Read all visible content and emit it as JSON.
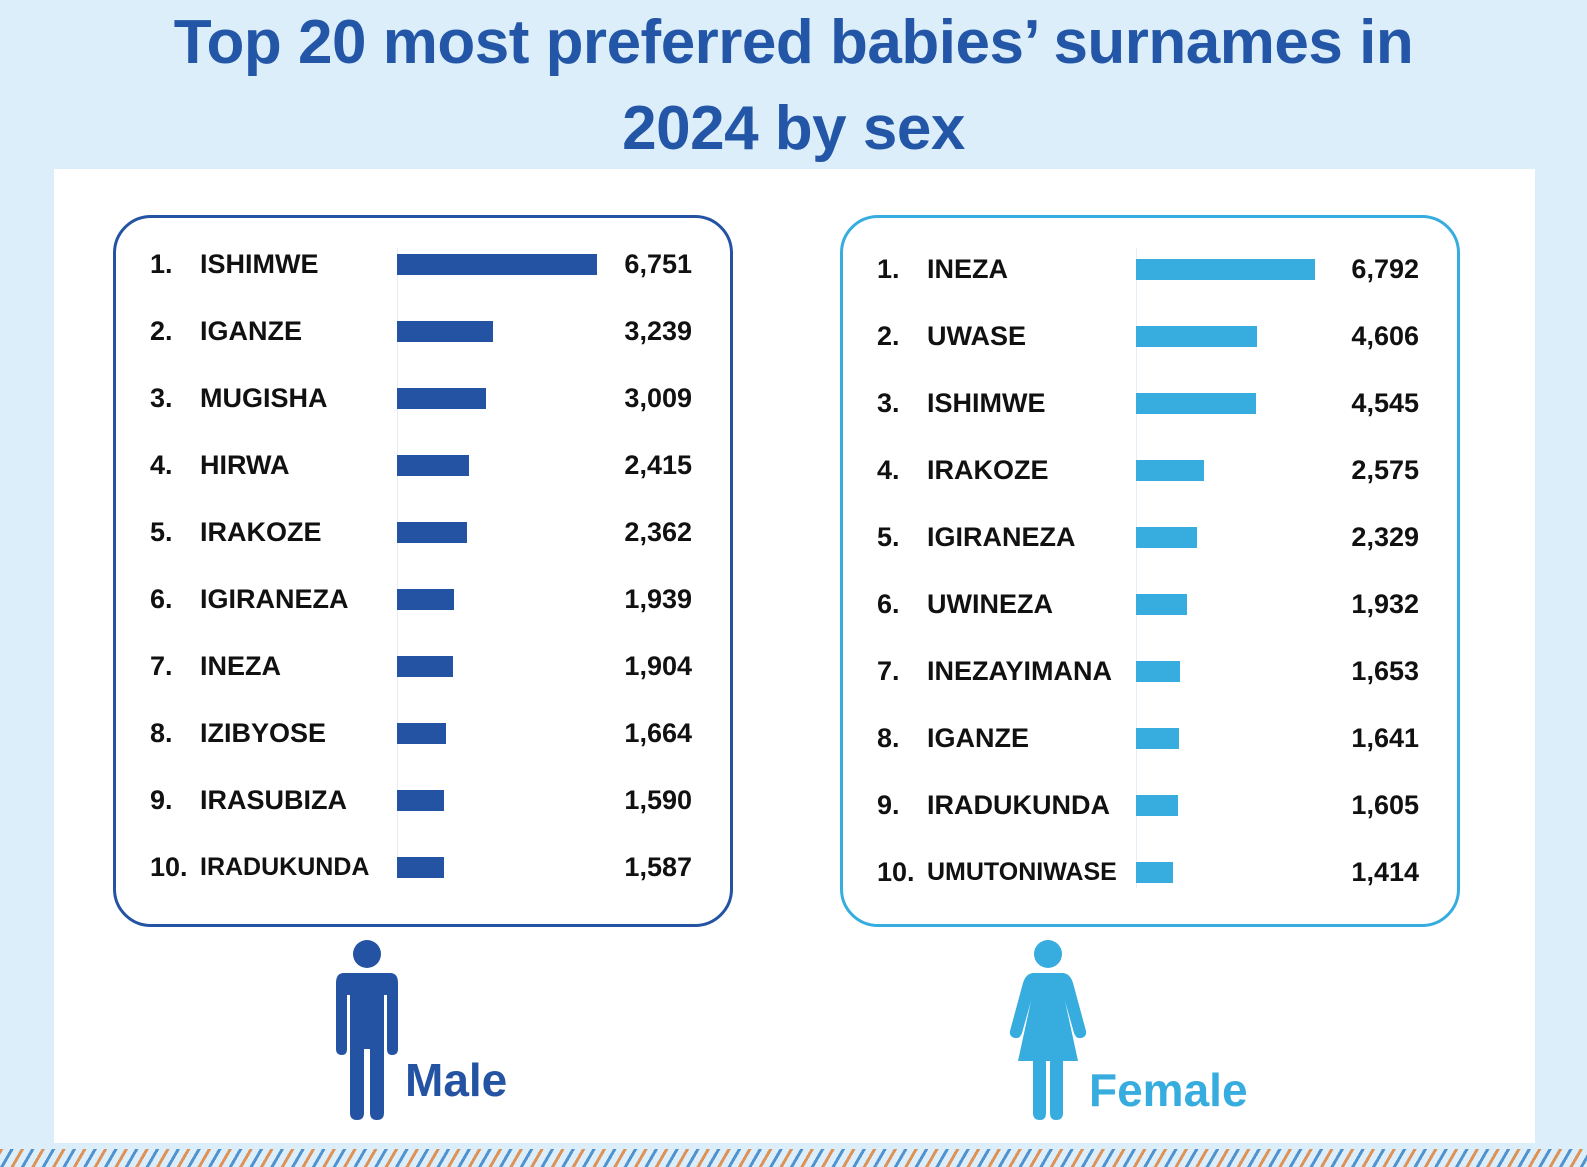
{
  "title": {
    "line1": "Top 20 most preferred babies’ surnames in",
    "line2": "2024 by sex"
  },
  "colors": {
    "male": "#2453a3",
    "female": "#36acdf",
    "background": "#dbeef9"
  },
  "chart_data": [
    {
      "type": "bar",
      "orientation": "horizontal",
      "label": "Male",
      "categories": [
        "ISHIMWE",
        "IGANZE",
        "MUGISHA",
        "HIRWA",
        "IRAKOZE",
        "IGIRANEZA",
        "INEZA",
        "IZIBYOSE",
        "IRASUBIZA",
        "IRADUKUNDA"
      ],
      "ranks": [
        "1.",
        "2.",
        "3.",
        "4.",
        "5.",
        "6.",
        "7.",
        "8.",
        "9.",
        "10."
      ],
      "values": [
        6751,
        3239,
        3009,
        2415,
        2362,
        1939,
        1904,
        1664,
        1590,
        1587
      ],
      "value_labels": [
        "6,751",
        "3,239",
        "3,009",
        "2,415",
        "2,362",
        "1,939",
        "1,904",
        "1,664",
        "1,590",
        "1,587"
      ],
      "color": "#2453a3",
      "icon": "male-person-icon"
    },
    {
      "type": "bar",
      "orientation": "horizontal",
      "label": "Female",
      "categories": [
        "INEZA",
        "UWASE",
        "ISHIMWE",
        "IRAKOZE",
        "IGIRANEZA",
        "UWINEZA",
        "INEZAYIMANA",
        "IGANZE",
        "IRADUKUNDA",
        "UMUTONIWASE"
      ],
      "ranks": [
        "1.",
        "2.",
        "3.",
        "4.",
        "5.",
        "6.",
        "7.",
        "8.",
        "9.",
        "10."
      ],
      "values": [
        6792,
        4606,
        4545,
        2575,
        2329,
        1932,
        1653,
        1641,
        1605,
        1414
      ],
      "value_labels": [
        "6,792",
        "4,606",
        "4,545",
        "2,575",
        "2,329",
        "1,932",
        "1,653",
        "1,641",
        "1,605",
        "1,414"
      ],
      "color": "#36acdf",
      "icon": "female-person-icon"
    }
  ]
}
